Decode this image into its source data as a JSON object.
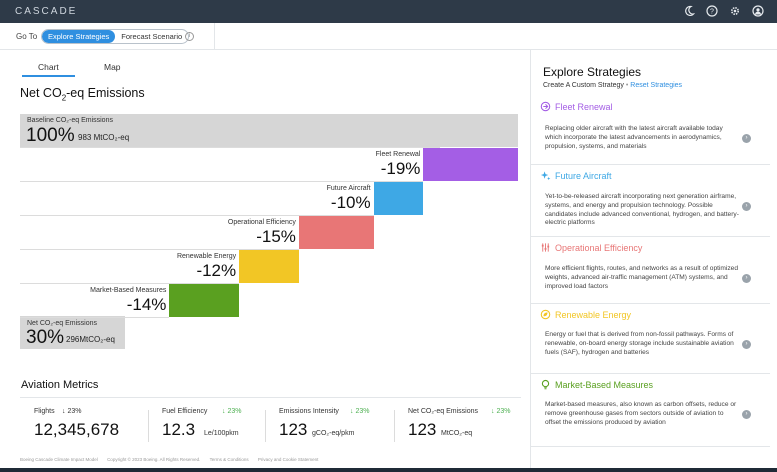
{
  "app": {
    "brand": "CASCADE"
  },
  "topbar": {
    "icons": [
      "moon-icon",
      "help-icon",
      "gear-icon",
      "user-icon"
    ]
  },
  "nav": {
    "goto_label": "Go To",
    "options": [
      "Explore Strategies",
      "Forecast Scenario"
    ],
    "active": "Explore Strategies"
  },
  "tabs": {
    "chart": "Chart",
    "map": "Map",
    "active": "Chart"
  },
  "chart_title_prefix": "Net CO",
  "chart_title_sub": "2",
  "chart_title_suffix": "-eq Emissions",
  "chart_data": {
    "type": "bar",
    "baseline": {
      "label": "Baseline CO₂-eq Emissions",
      "percent": "100%",
      "value": "983",
      "unit": "MtCO₂-eq"
    },
    "steps": [
      {
        "label": "Fleet Renewal",
        "percent": "-19%",
        "value": -19,
        "color": "#a45ee5"
      },
      {
        "label": "Future Aircraft",
        "percent": "-10%",
        "value": -10,
        "color": "#3ea8e5"
      },
      {
        "label": "Operational Efficiency",
        "percent": "-15%",
        "value": -15,
        "color": "#e87676"
      },
      {
        "label": "Renewable Energy",
        "percent": "-12%",
        "value": -12,
        "color": "#f2c625"
      },
      {
        "label": "Market-Based Measures",
        "percent": "-14%",
        "value": -14,
        "color": "#5aa020"
      }
    ],
    "net": {
      "label": "Net CO₂-eq Emissions",
      "percent": "30%",
      "value": "296",
      "unit": "MtCO₂-eq"
    }
  },
  "metrics": {
    "title": "Aviation Metrics",
    "items": [
      {
        "label": "Flights",
        "change": "↓ 23%",
        "change_color": "#333",
        "value": "12,345,678",
        "unit": ""
      },
      {
        "label": "Fuel Efficiency",
        "change": "↓ 23%",
        "change_color": "#4caf50",
        "value": "12.3",
        "unit": "Le/100pkm"
      },
      {
        "label": "Emissions Intensity",
        "change": "↓ 23%",
        "change_color": "#4caf50",
        "value": "123",
        "unit": "gCO₂-eq/pkm"
      },
      {
        "label": "Net CO₂-eq Emissions",
        "change": "↓ 23%",
        "change_color": "#4caf50",
        "value": "123",
        "unit": "MtCO₂-eq"
      }
    ]
  },
  "footer": {
    "items": [
      "Boeing Cascade Climate Impact Model",
      "Copyright © 2023 Boeing. All Rights Reserved.",
      "Terms & Conditions",
      "Privacy and Cookie Statement"
    ]
  },
  "side": {
    "title": "Explore Strategies",
    "subtitle": "Create A Custom Strategy",
    "separator": "•",
    "reset": "Reset Strategies",
    "strategies": [
      {
        "name": "Fleet Renewal",
        "color": "#a45ee5",
        "icon": "fleet-renewal-icon",
        "desc": "Replacing older aircraft with the latest aircraft available today which incorporate the latest advancements in aerodynamics, propulsion, systems, and materials"
      },
      {
        "name": "Future Aircraft",
        "color": "#3ea8e5",
        "icon": "sparkle-icon",
        "desc": "Yet-to-be-released aircraft incorporating next generation airframe, systems, and energy and propulsion technology. Possible candidates include advanced conventional, hydrogen, and battery-electric platforms"
      },
      {
        "name": "Operational Efficiency",
        "color": "#e87676",
        "icon": "sliders-icon",
        "desc": "More efficient flights, routes, and networks as a result of optimized weights, advanced air-traffic management (ATM) systems, and improved load factors"
      },
      {
        "name": "Renewable Energy",
        "color": "#f2c625",
        "icon": "leaf-icon",
        "desc": "Energy or fuel that is derived from non-fossil pathways. Forms of renewable, on-board energy storage include sustainable aviation fuels (SAF), hydrogen and batteries"
      },
      {
        "name": "Market-Based Measures",
        "color": "#5aa020",
        "icon": "lightbulb-icon",
        "desc": "Market-based measures, also known as carbon offsets, reduce or remove greenhouse gases from sectors outside of aviation to offset the emissions produced by aviation"
      }
    ]
  }
}
